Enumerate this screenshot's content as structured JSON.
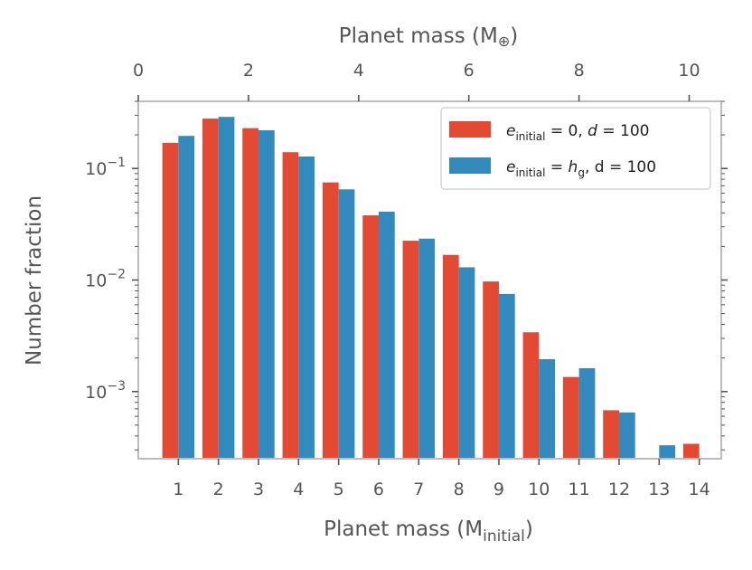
{
  "chart_data": {
    "type": "bar",
    "yscale": "log",
    "ylim": [
      0.00025,
      0.4
    ],
    "xlim": [
      0.0,
      14.55
    ],
    "xlabel": "Planet mass (M",
    "xlabel_sub": "initial",
    "xlabel_close": ")",
    "x2label": "Planet mass (M",
    "x2label_symbol": "⊕",
    "x2label_close": ")",
    "ylabel": "Number fraction",
    "categories": [
      "1",
      "2",
      "3",
      "4",
      "5",
      "6",
      "7",
      "8",
      "9",
      "10",
      "11",
      "12",
      "13",
      "14"
    ],
    "x2_ticks": [
      "0",
      "2",
      "4",
      "6",
      "8",
      "10"
    ],
    "x2_scale": 0.7273,
    "yticks": [
      {
        "value": 0.1,
        "base": "10",
        "exp": "−1"
      },
      {
        "value": 0.01,
        "base": "10",
        "exp": "−2"
      },
      {
        "value": 0.001,
        "base": "10",
        "exp": "−3"
      }
    ],
    "legend_position": "top-right",
    "series": [
      {
        "name": "e_initial = 0, d = 100",
        "label_var": "e",
        "label_sub": "initial",
        "label_rest": " = 0, ",
        "label_var2": "d",
        "label_rest2": " = 100",
        "color": "#e24a33",
        "values": [
          0.17,
          0.28,
          0.23,
          0.14,
          0.075,
          0.038,
          0.0225,
          0.0168,
          0.0097,
          0.0034,
          0.00135,
          0.00068,
          null,
          0.00034
        ]
      },
      {
        "name": "e_initial = h_g, d = 100",
        "label_var": "e",
        "label_sub": "initial",
        "label_rest": " = ",
        "label_var2": "h",
        "label_var2_sub": "g",
        "label_rest2": ", d = 100",
        "color": "#348abd",
        "values": [
          0.196,
          0.29,
          0.22,
          0.128,
          0.065,
          0.041,
          0.0235,
          0.013,
          0.0075,
          0.00195,
          0.00162,
          0.00065,
          0.00033,
          null
        ]
      }
    ]
  }
}
